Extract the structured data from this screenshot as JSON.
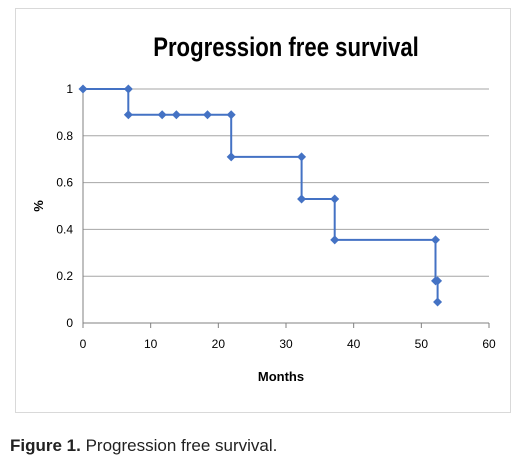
{
  "chart_data": {
    "type": "line",
    "title": "Progression free survival",
    "xlabel": "Months",
    "ylabel": "%",
    "xlim": [
      0,
      60
    ],
    "ylim": [
      0,
      1
    ],
    "x_ticks": [
      "0",
      "10",
      "20",
      "30",
      "40",
      "50",
      "60"
    ],
    "y_ticks": [
      "0",
      "0.2",
      "0.4",
      "0.6",
      "0.8",
      "1"
    ],
    "grid": "horizontal",
    "legend": "none",
    "line_style": "step",
    "series": [
      {
        "points": [
          {
            "x": 0,
            "y": 1.0
          },
          {
            "x": 6.7,
            "y": 1.0
          },
          {
            "x": 6.7,
            "y": 0.89
          },
          {
            "x": 11.7,
            "y": 0.89
          },
          {
            "x": 13.8,
            "y": 0.89
          },
          {
            "x": 18.4,
            "y": 0.89
          },
          {
            "x": 21.9,
            "y": 0.89
          },
          {
            "x": 21.9,
            "y": 0.71
          },
          {
            "x": 32.3,
            "y": 0.71
          },
          {
            "x": 32.3,
            "y": 0.53
          },
          {
            "x": 37.2,
            "y": 0.53
          },
          {
            "x": 37.2,
            "y": 0.355
          },
          {
            "x": 52.1,
            "y": 0.355
          },
          {
            "x": 52.1,
            "y": 0.18
          },
          {
            "x": 52.4,
            "y": 0.18
          },
          {
            "x": 52.4,
            "y": 0.09
          }
        ]
      }
    ]
  },
  "colors": {
    "series": "#4472c4",
    "grid": "#a6a6a6",
    "axis": "#808080",
    "text": "#000000"
  },
  "caption": {
    "label": "Figure 1.",
    "text": "Progression free survival."
  }
}
